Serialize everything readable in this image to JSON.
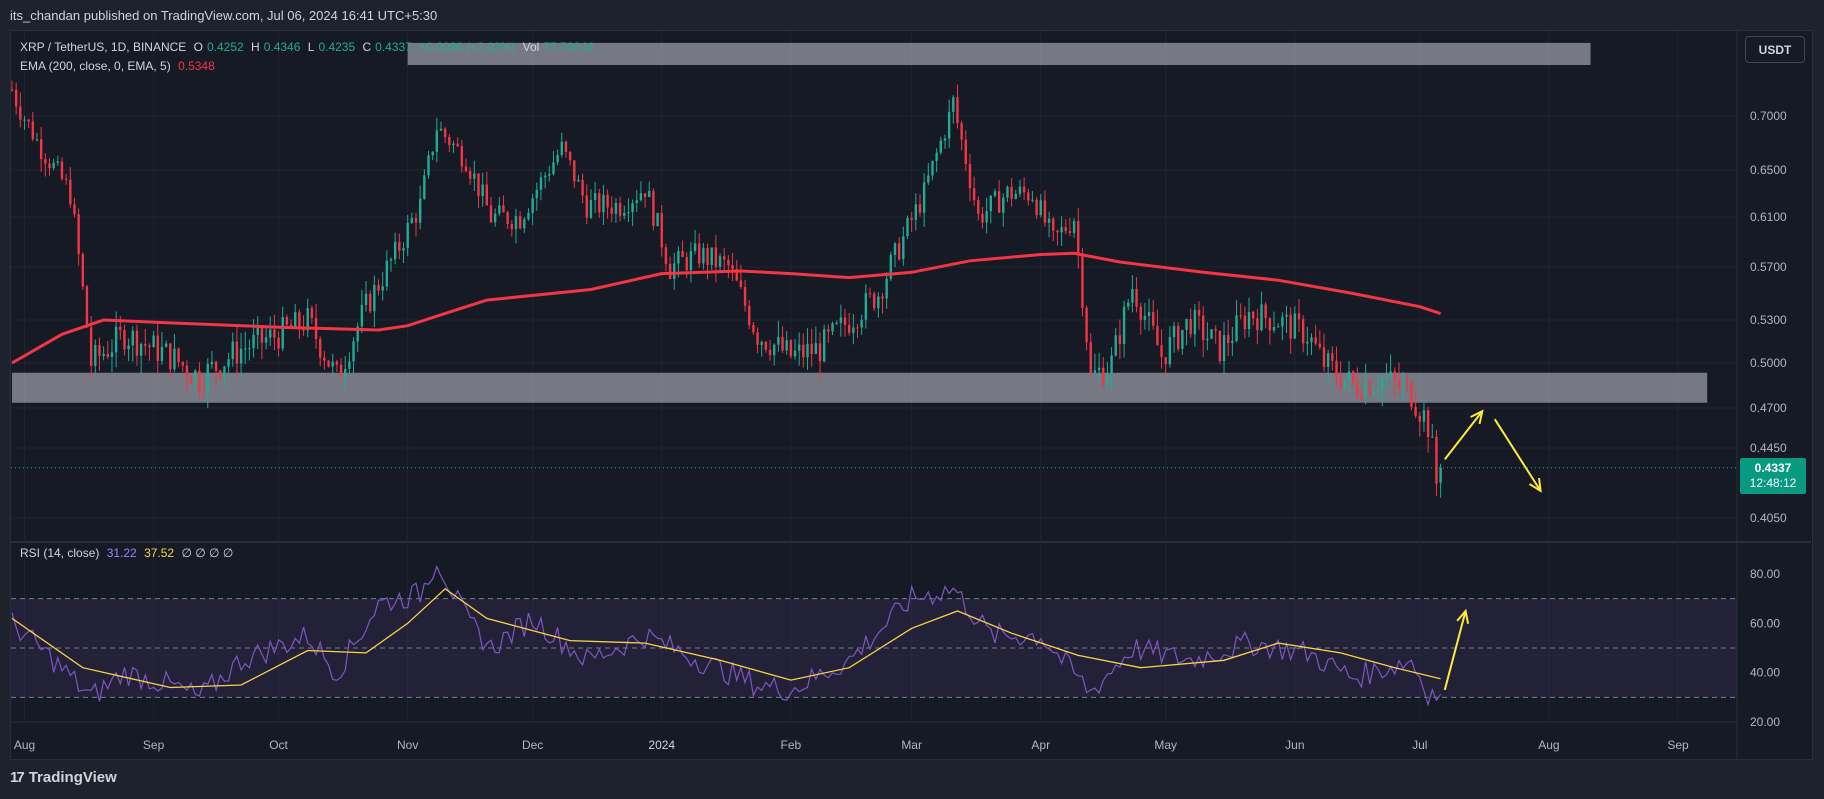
{
  "header": {
    "publisher": "its_chandan published on TradingView.com, Jul 06, 2024 16:41 UTC+5:30"
  },
  "legend": {
    "symbol": "XRP / TetherUS, 1D, BINANCE",
    "open_label": "O",
    "open": "0.4252",
    "high_label": "H",
    "high": "0.4346",
    "low_label": "L",
    "low": "0.4235",
    "close_label": "C",
    "close": "0.4337",
    "change": "+0.0086 (+2.02%)",
    "vol_label": "Vol",
    "vol": "77.766 M",
    "ema_label": "EMA (200, close, 0, EMA, 5)",
    "ema_value": "0.5348",
    "rsi_label": "RSI (14, close)",
    "rsi_value": "31.22",
    "rsi_ma_value": "37.52",
    "rsi_empty": "∅ ∅ ∅ ∅"
  },
  "toolbar": {
    "currency": "USDT"
  },
  "price_tag": {
    "price": "0.4337",
    "countdown": "12:48:12"
  },
  "footer": {
    "brand": "TradingView",
    "logo": "17"
  },
  "colors": {
    "up": "#22ab94",
    "down": "#f23645",
    "ema": "#f23645",
    "rsi": "#7e57c2",
    "rsi_ma": "#f7d34a",
    "zone": "#b2b5be",
    "arrow": "#ffeb3b"
  },
  "chart_data": [
    {
      "type": "candlestick",
      "title": "XRP / TetherUS, 1D, BINANCE",
      "y_ticks": [
        "0.7000",
        "0.6500",
        "0.6100",
        "0.5700",
        "0.5300",
        "0.5000",
        "0.4700",
        "0.4450",
        "0.4050"
      ],
      "x_ticks": [
        "Aug",
        "Sep",
        "Oct",
        "Nov",
        "Dec",
        "2024",
        "Feb",
        "Mar",
        "Apr",
        "May",
        "Jun",
        "Jul",
        "Aug",
        "Sep"
      ],
      "x_tick_dates": [
        "2023-08-01",
        "2023-09-01",
        "2023-10-01",
        "2023-11-01",
        "2023-12-01",
        "2024-01-01",
        "2024-02-01",
        "2024-03-01",
        "2024-04-01",
        "2024-05-01",
        "2024-06-01",
        "2024-07-01",
        "2024-08-01",
        "2024-09-01"
      ],
      "last_price": 0.4337,
      "price_path": [
        [
          "2023-07-29",
          0.72
        ],
        [
          "2023-08-05",
          0.67
        ],
        [
          "2023-08-12",
          0.63
        ],
        [
          "2023-08-17",
          0.5
        ],
        [
          "2023-08-25",
          0.52
        ],
        [
          "2023-09-05",
          0.505
        ],
        [
          "2023-09-12",
          0.49
        ],
        [
          "2023-09-22",
          0.51
        ],
        [
          "2023-10-01",
          0.52
        ],
        [
          "2023-10-08",
          0.53
        ],
        [
          "2023-10-15",
          0.49
        ],
        [
          "2023-10-22",
          0.54
        ],
        [
          "2023-10-29",
          0.58
        ],
        [
          "2023-11-04",
          0.62
        ],
        [
          "2023-11-08",
          0.69
        ],
        [
          "2023-11-15",
          0.66
        ],
        [
          "2023-11-21",
          0.61
        ],
        [
          "2023-11-28",
          0.61
        ],
        [
          "2023-12-08",
          0.67
        ],
        [
          "2023-12-14",
          0.62
        ],
        [
          "2023-12-22",
          0.62
        ],
        [
          "2023-12-28",
          0.635
        ],
        [
          "2024-01-03",
          0.57
        ],
        [
          "2024-01-10",
          0.58
        ],
        [
          "2024-01-17",
          0.57
        ],
        [
          "2024-01-24",
          0.52
        ],
        [
          "2024-02-01",
          0.505
        ],
        [
          "2024-02-08",
          0.51
        ],
        [
          "2024-02-15",
          0.53
        ],
        [
          "2024-02-22",
          0.55
        ],
        [
          "2024-02-29",
          0.6
        ],
        [
          "2024-03-04",
          0.63
        ],
        [
          "2024-03-11",
          0.71
        ],
        [
          "2024-03-17",
          0.61
        ],
        [
          "2024-03-24",
          0.63
        ],
        [
          "2024-03-30",
          0.63
        ],
        [
          "2024-04-04",
          0.59
        ],
        [
          "2024-04-09",
          0.61
        ],
        [
          "2024-04-13",
          0.49
        ],
        [
          "2024-04-18",
          0.5
        ],
        [
          "2024-04-23",
          0.555
        ],
        [
          "2024-04-30",
          0.505
        ],
        [
          "2024-05-07",
          0.53
        ],
        [
          "2024-05-14",
          0.51
        ],
        [
          "2024-05-21",
          0.535
        ],
        [
          "2024-05-28",
          0.53
        ],
        [
          "2024-06-04",
          0.52
        ],
        [
          "2024-06-08",
          0.5
        ],
        [
          "2024-06-15",
          0.485
        ],
        [
          "2024-06-22",
          0.49
        ],
        [
          "2024-06-29",
          0.48
        ],
        [
          "2024-07-03",
          0.46
        ],
        [
          "2024-07-05",
          0.425
        ],
        [
          "2024-07-06",
          0.4337
        ]
      ],
      "ema_200_path": [
        [
          "2023-07-29",
          0.5
        ],
        [
          "2023-08-10",
          0.52
        ],
        [
          "2023-08-20",
          0.53
        ],
        [
          "2023-09-05",
          0.528
        ],
        [
          "2023-10-01",
          0.525
        ],
        [
          "2023-10-25",
          0.523
        ],
        [
          "2023-11-01",
          0.526
        ],
        [
          "2023-11-10",
          0.535
        ],
        [
          "2023-11-20",
          0.545
        ],
        [
          "2023-12-15",
          0.553
        ],
        [
          "2024-01-01",
          0.565
        ],
        [
          "2024-01-20",
          0.567
        ],
        [
          "2024-02-01",
          0.565
        ],
        [
          "2024-02-15",
          0.562
        ],
        [
          "2024-03-01",
          0.566
        ],
        [
          "2024-03-15",
          0.575
        ],
        [
          "2024-04-01",
          0.58
        ],
        [
          "2024-04-09",
          0.581
        ],
        [
          "2024-04-20",
          0.574
        ],
        [
          "2024-05-10",
          0.566
        ],
        [
          "2024-05-28",
          0.56
        ],
        [
          "2024-06-15",
          0.55
        ],
        [
          "2024-07-01",
          0.54
        ],
        [
          "2024-07-06",
          0.5348
        ]
      ],
      "ema_last": 0.5348,
      "zones": [
        {
          "from": "2023-11-01",
          "to": "2024-08-11",
          "y_range": [
            0.7385,
            0.7555
          ]
        },
        {
          "from": "2023-07-29",
          "to": "2024-09-08",
          "y_range": [
            0.4735,
            0.4935
          ]
        }
      ],
      "annotation_arrows": [
        {
          "from": [
            "2024-07-07",
            0.4385
          ],
          "to": [
            "2024-07-16",
            0.468
          ]
        },
        {
          "from": [
            "2024-07-19",
            0.463
          ],
          "to": [
            "2024-07-30",
            0.4205
          ]
        }
      ]
    },
    {
      "type": "line",
      "title": "RSI (14, close)",
      "ylim": [
        20,
        80
      ],
      "y_ticks": [
        "80.00",
        "60.00",
        "40.00",
        "20.00"
      ],
      "bands": [
        70,
        50,
        30
      ],
      "series": [
        {
          "name": "RSI",
          "values_path": [
            [
              "2023-07-29",
              60
            ],
            [
              "2023-08-08",
              45
            ],
            [
              "2023-08-17",
              30
            ],
            [
              "2023-08-25",
              40
            ],
            [
              "2023-09-05",
              35
            ],
            [
              "2023-09-12",
              30
            ],
            [
              "2023-09-22",
              45
            ],
            [
              "2023-10-08",
              55
            ],
            [
              "2023-10-15",
              40
            ],
            [
              "2023-10-25",
              68
            ],
            [
              "2023-11-04",
              72
            ],
            [
              "2023-11-08",
              86
            ],
            [
              "2023-11-15",
              62
            ],
            [
              "2023-11-21",
              50
            ],
            [
              "2023-12-01",
              62
            ],
            [
              "2023-12-14",
              45
            ],
            [
              "2023-12-28",
              55
            ],
            [
              "2024-01-10",
              45
            ],
            [
              "2024-01-24",
              35
            ],
            [
              "2024-02-01",
              33
            ],
            [
              "2024-02-15",
              45
            ],
            [
              "2024-03-01",
              70
            ],
            [
              "2024-03-11",
              74
            ],
            [
              "2024-03-20",
              55
            ],
            [
              "2024-04-01",
              55
            ],
            [
              "2024-04-13",
              32
            ],
            [
              "2024-04-23",
              50
            ],
            [
              "2024-05-07",
              45
            ],
            [
              "2024-05-21",
              52
            ],
            [
              "2024-06-04",
              48
            ],
            [
              "2024-06-15",
              38
            ],
            [
              "2024-06-29",
              45
            ],
            [
              "2024-07-03",
              32
            ],
            [
              "2024-07-06",
              31.22
            ]
          ]
        },
        {
          "name": "RSI MA",
          "values_path": [
            [
              "2023-07-29",
              62
            ],
            [
              "2023-08-15",
              42
            ],
            [
              "2023-09-05",
              34
            ],
            [
              "2023-09-22",
              35
            ],
            [
              "2023-10-08",
              49
            ],
            [
              "2023-10-22",
              48
            ],
            [
              "2023-11-01",
              60
            ],
            [
              "2023-11-10",
              74
            ],
            [
              "2023-11-20",
              62
            ],
            [
              "2023-12-10",
              53
            ],
            [
              "2023-12-28",
              52
            ],
            [
              "2024-01-15",
              45
            ],
            [
              "2024-02-01",
              37
            ],
            [
              "2024-02-15",
              42
            ],
            [
              "2024-03-01",
              58
            ],
            [
              "2024-03-12",
              65
            ],
            [
              "2024-03-25",
              56
            ],
            [
              "2024-04-10",
              47
            ],
            [
              "2024-04-25",
              42
            ],
            [
              "2024-05-15",
              45
            ],
            [
              "2024-05-28",
              52
            ],
            [
              "2024-06-12",
              48
            ],
            [
              "2024-06-25",
              42
            ],
            [
              "2024-07-06",
              37.52
            ]
          ]
        }
      ],
      "annotation_arrows": [
        {
          "from": [
            "2024-07-07",
            33
          ],
          "to": [
            "2024-07-12",
            65
          ]
        }
      ]
    }
  ]
}
